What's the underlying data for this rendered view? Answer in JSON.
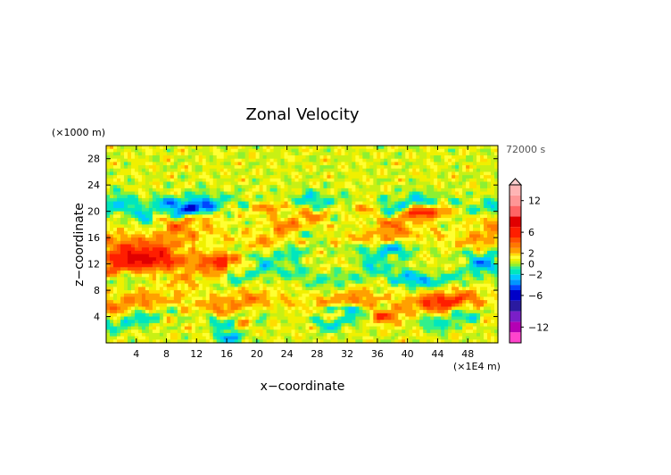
{
  "chart_data": {
    "type": "heatmap",
    "title": "Zonal Velocity",
    "xlabel": "x−coordinate",
    "ylabel": "z−coordinate",
    "x_unit_label": "(×1E4 m)",
    "y_unit_label": "(×1000 m)",
    "time_label": "72000 s",
    "xlim": [
      0,
      52
    ],
    "ylim": [
      0,
      30
    ],
    "x_ticks": [
      {
        "value": 4,
        "label": "4"
      },
      {
        "value": 8,
        "label": "8"
      },
      {
        "value": 12,
        "label": "12"
      },
      {
        "value": 16,
        "label": "16"
      },
      {
        "value": 20,
        "label": "20"
      },
      {
        "value": 24,
        "label": "24"
      },
      {
        "value": 28,
        "label": "28"
      },
      {
        "value": 32,
        "label": "32"
      },
      {
        "value": 36,
        "label": "36"
      },
      {
        "value": 40,
        "label": "40"
      },
      {
        "value": 44,
        "label": "44"
      },
      {
        "value": 48,
        "label": "48"
      }
    ],
    "y_ticks": [
      {
        "value": 4,
        "label": "4"
      },
      {
        "value": 8,
        "label": "8"
      },
      {
        "value": 12,
        "label": "12"
      },
      {
        "value": 16,
        "label": "16"
      },
      {
        "value": 20,
        "label": "20"
      },
      {
        "value": 24,
        "label": "24"
      },
      {
        "value": 28,
        "label": "28"
      }
    ],
    "colorbar": {
      "range": [
        -15,
        15
      ],
      "tick_values": [
        {
          "value": 12,
          "label": "12"
        },
        {
          "value": 6,
          "label": "6"
        },
        {
          "value": 2,
          "label": "2"
        },
        {
          "value": 0,
          "label": "0"
        },
        {
          "value": -2,
          "label": "−2"
        },
        {
          "value": -6,
          "label": "−6"
        },
        {
          "value": -12,
          "label": "−12"
        }
      ],
      "levels": [
        {
          "from": -15,
          "to": -13,
          "color": "#ff44cc"
        },
        {
          "from": -13,
          "to": -11,
          "color": "#b400b4"
        },
        {
          "from": -11,
          "to": -9,
          "color": "#7a1fc8"
        },
        {
          "from": -9,
          "to": -7,
          "color": "#2a1aa0"
        },
        {
          "from": -7,
          "to": -5,
          "color": "#0000c8"
        },
        {
          "from": -5,
          "to": -4,
          "color": "#0046ff"
        },
        {
          "from": -4,
          "to": -3,
          "color": "#0096ff"
        },
        {
          "from": -3,
          "to": -2,
          "color": "#00c8ff"
        },
        {
          "from": -2,
          "to": -1,
          "color": "#00e6be"
        },
        {
          "from": -1,
          "to": -0.5,
          "color": "#32f08c"
        },
        {
          "from": -0.5,
          "to": 0,
          "color": "#8cf032"
        },
        {
          "from": 0,
          "to": 0.5,
          "color": "#c8f014"
        },
        {
          "from": 0.5,
          "to": 1,
          "color": "#f0f000"
        },
        {
          "from": 1,
          "to": 1.5,
          "color": "#ffff32"
        },
        {
          "from": 1.5,
          "to": 2,
          "color": "#ffdc00"
        },
        {
          "from": 2,
          "to": 3,
          "color": "#ffa000"
        },
        {
          "from": 3,
          "to": 4,
          "color": "#ff7800"
        },
        {
          "from": 4,
          "to": 5,
          "color": "#ff5000"
        },
        {
          "from": 5,
          "to": 7,
          "color": "#ff1e00"
        },
        {
          "from": 7,
          "to": 9,
          "color": "#e10000"
        },
        {
          "from": 9,
          "to": 11,
          "color": "#ff6464"
        },
        {
          "from": 11,
          "to": 13,
          "color": "#ff9696"
        },
        {
          "from": 13,
          "to": 15,
          "color": "#ffb4b4"
        }
      ]
    },
    "features": [
      {
        "kind": "band",
        "name": "cyan-blue band upper",
        "x_range": [
          0,
          52
        ],
        "z_center": 20.5,
        "z_width": 1.6,
        "value": -2.5
      },
      {
        "kind": "band",
        "name": "orange band upper",
        "x_range": [
          8,
          52
        ],
        "z_center": 19.3,
        "z_width": 1.2,
        "value": 2.5
      },
      {
        "kind": "band",
        "name": "orange band 16km",
        "x_range": [
          0,
          52
        ],
        "z_center": 15.5,
        "z_width": 2.0,
        "value": 2.0
      },
      {
        "kind": "band",
        "name": "cyan band 14km",
        "x_range": [
          14,
          52
        ],
        "z_center": 14.0,
        "z_width": 1.4,
        "value": -2.0
      },
      {
        "kind": "band",
        "name": "orange band 12km west",
        "x_range": [
          0,
          14
        ],
        "z_center": 12.0,
        "z_width": 2.6,
        "value": 3.0
      },
      {
        "kind": "band",
        "name": "cyan band 10km",
        "x_range": [
          0,
          52
        ],
        "z_center": 10.2,
        "z_width": 1.2,
        "value": -1.5
      },
      {
        "kind": "band",
        "name": "orange band 5km",
        "x_range": [
          0,
          52
        ],
        "z_center": 5.5,
        "z_width": 1.8,
        "value": 2.5
      },
      {
        "kind": "band",
        "name": "blue band 4km",
        "x_range": [
          0,
          52
        ],
        "z_center": 4.0,
        "z_width": 1.2,
        "value": -2.5
      },
      {
        "kind": "blob",
        "name": "blue core near x12",
        "x": 12.0,
        "z": 20.3,
        "rx": 2.6,
        "rz": 1.1,
        "value": -5.0
      },
      {
        "kind": "blob",
        "name": "blue core near x8",
        "x": 8.0,
        "z": 21.5,
        "rx": 1.6,
        "rz": 0.7,
        "value": -3.5
      },
      {
        "kind": "blob",
        "name": "red core near x22",
        "x": 22.5,
        "z": 20.5,
        "rx": 2.8,
        "rz": 0.9,
        "value": 4.5
      },
      {
        "kind": "blob",
        "name": "red core near x42",
        "x": 42.5,
        "z": 20.0,
        "rx": 3.0,
        "rz": 0.9,
        "value": 4.0
      },
      {
        "kind": "blob",
        "name": "red core near x34",
        "x": 34.5,
        "z": 20.5,
        "rx": 1.8,
        "rz": 0.8,
        "value": 3.5
      },
      {
        "kind": "blob",
        "name": "orange core x5 z12",
        "x": 5.0,
        "z": 12.5,
        "rx": 4.5,
        "rz": 1.6,
        "value": 3.5
      },
      {
        "kind": "blob",
        "name": "orange core x16 z12",
        "x": 16.0,
        "z": 12.5,
        "rx": 2.2,
        "rz": 1.0,
        "value": 3.0
      },
      {
        "kind": "blob",
        "name": "blue core x30 z5",
        "x": 30.5,
        "z": 5.2,
        "rx": 3.0,
        "rz": 0.6,
        "value": -4.0
      },
      {
        "kind": "blob",
        "name": "red core x37 z4",
        "x": 37.0,
        "z": 4.0,
        "rx": 2.5,
        "rz": 1.0,
        "value": 4.0
      },
      {
        "kind": "blob",
        "name": "orange core x44 z6",
        "x": 44.0,
        "z": 6.5,
        "rx": 3.5,
        "rz": 1.2,
        "value": 3.0
      },
      {
        "kind": "blob",
        "name": "blue core x16 z1",
        "x": 16.5,
        "z": 0.8,
        "rx": 1.8,
        "rz": 0.8,
        "value": -4.0
      },
      {
        "kind": "blob",
        "name": "red core x18 z3",
        "x": 18.5,
        "z": 3.5,
        "rx": 1.2,
        "rz": 1.2,
        "value": 4.0
      },
      {
        "kind": "blob",
        "name": "cyan core x41 z9",
        "x": 41.0,
        "z": 9.5,
        "rx": 2.5,
        "rz": 1.0,
        "value": -2.5
      },
      {
        "kind": "blob",
        "name": "cyan core x26 z16",
        "x": 26.5,
        "z": 16.5,
        "rx": 3.0,
        "rz": 0.8,
        "value": -2.5
      },
      {
        "kind": "blob",
        "name": "cyan core x36 z14",
        "x": 36.0,
        "z": 14.5,
        "rx": 3.5,
        "rz": 0.8,
        "value": -2.5
      },
      {
        "kind": "blob",
        "name": "cyan core x50 z12",
        "x": 50.0,
        "z": 12.0,
        "rx": 2.0,
        "rz": 0.8,
        "value": -2.0
      }
    ]
  }
}
